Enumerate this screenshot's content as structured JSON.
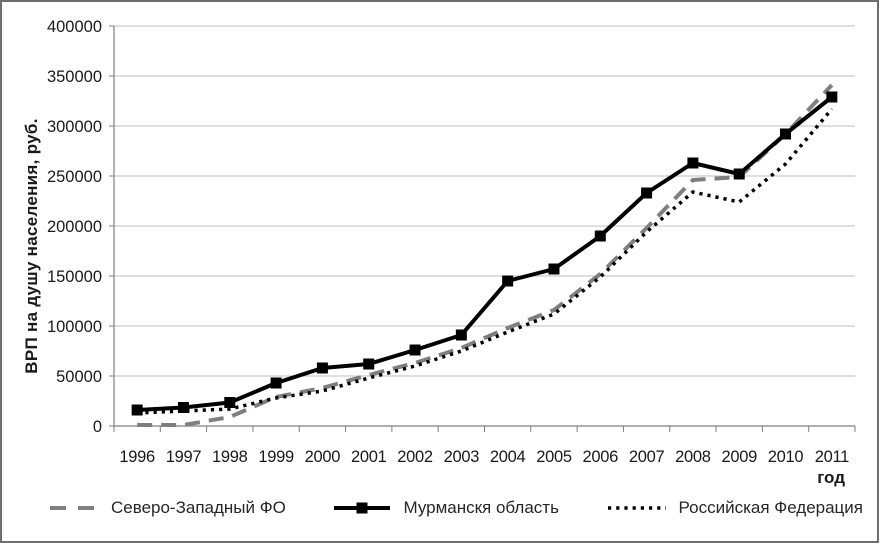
{
  "chart_data": {
    "type": "line",
    "title": "",
    "xlabel": "год",
    "ylabel": "ВРП на душу населения, руб.",
    "ylim": [
      0,
      400000
    ],
    "ytick_step": 50000,
    "yticks": [
      "0",
      "50000",
      "100000",
      "150000",
      "200000",
      "250000",
      "300000",
      "350000",
      "400000"
    ],
    "grid": true,
    "legend_position": "bottom",
    "categories": [
      "1996",
      "1997",
      "1998",
      "1999",
      "2000",
      "2001",
      "2002",
      "2003",
      "2004",
      "2005",
      "2006",
      "2007",
      "2008",
      "2009",
      "2010",
      "2011"
    ],
    "series": [
      {
        "name": "Северо-Западный ФО",
        "style": "dashed",
        "color": "#7f7f7f",
        "values": [
          1000,
          1000,
          9000,
          29000,
          38000,
          51000,
          63000,
          78000,
          98000,
          116000,
          152000,
          198000,
          246000,
          249000,
          292000,
          341000
        ]
      },
      {
        "name": "Мурманскя область",
        "style": "solid-square",
        "color": "#000000",
        "values": [
          16000,
          18500,
          23500,
          43000,
          58000,
          62000,
          76000,
          91000,
          145000,
          157000,
          190000,
          233000,
          263000,
          252000,
          292000,
          329000
        ]
      },
      {
        "name": "Российская Федерация",
        "style": "dotted",
        "color": "#000000",
        "values": [
          13000,
          15000,
          17000,
          28000,
          35000,
          48000,
          60000,
          75000,
          94000,
          112000,
          149000,
          194000,
          234000,
          224000,
          262000,
          317000
        ]
      }
    ],
    "colors": {
      "grid": "#bfbfbf",
      "axis": "#7f7f7f",
      "tick_text": "#1a1a1a"
    }
  }
}
